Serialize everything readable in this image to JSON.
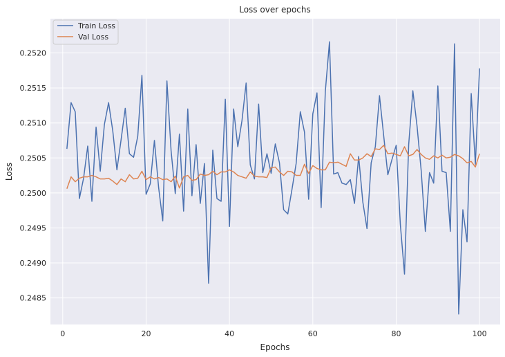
{
  "chart_data": {
    "type": "line",
    "title": "Loss over epochs",
    "xlabel": "Epochs",
    "ylabel": "Loss",
    "xlim": [
      -2.95,
      104.95
    ],
    "ylim": [
      0.24812,
      0.25249
    ],
    "grid": true,
    "legend_position": "top-left",
    "x_ticks": [
      0,
      20,
      40,
      60,
      80,
      100
    ],
    "y_ticks": [
      0.2485,
      0.249,
      0.2495,
      0.25,
      0.2505,
      0.251,
      0.2515,
      0.252
    ],
    "x_tick_labels": [
      "0",
      "20",
      "40",
      "60",
      "80",
      "100"
    ],
    "y_tick_labels": [
      "0.2485",
      "0.2490",
      "0.2495",
      "0.2500",
      "0.2505",
      "0.2510",
      "0.2515",
      "0.2520"
    ],
    "x": [
      1,
      2,
      3,
      4,
      5,
      6,
      7,
      8,
      9,
      10,
      11,
      12,
      13,
      14,
      15,
      16,
      17,
      18,
      19,
      20,
      21,
      22,
      23,
      24,
      25,
      26,
      27,
      28,
      29,
      30,
      31,
      32,
      33,
      34,
      35,
      36,
      37,
      38,
      39,
      40,
      41,
      42,
      43,
      44,
      45,
      46,
      47,
      48,
      49,
      50,
      51,
      52,
      53,
      54,
      55,
      56,
      57,
      58,
      59,
      60,
      61,
      62,
      63,
      64,
      65,
      66,
      67,
      68,
      69,
      70,
      71,
      72,
      73,
      74,
      75,
      76,
      77,
      78,
      79,
      80,
      81,
      82,
      83,
      84,
      85,
      86,
      87,
      88,
      89,
      90,
      91,
      92,
      93,
      94,
      95,
      96,
      97,
      98,
      99,
      100
    ],
    "series": [
      {
        "name": "Train Loss",
        "color": "#4c72b0",
        "values": [
          0.25063,
          0.25129,
          0.25116,
          0.24992,
          0.25021,
          0.25067,
          0.24988,
          0.25094,
          0.25031,
          0.25098,
          0.25129,
          0.25089,
          0.25033,
          0.25076,
          0.25121,
          0.25056,
          0.25051,
          0.25081,
          0.25168,
          0.24998,
          0.25013,
          0.25075,
          0.25008,
          0.2496,
          0.2516,
          0.2506,
          0.24999,
          0.25084,
          0.24974,
          0.2512,
          0.24996,
          0.25069,
          0.24985,
          0.25042,
          0.24871,
          0.25061,
          0.24992,
          0.24988,
          0.25134,
          0.24952,
          0.2512,
          0.25066,
          0.25103,
          0.25157,
          0.2504,
          0.2502,
          0.25127,
          0.25029,
          0.25056,
          0.25028,
          0.2507,
          0.25043,
          0.24976,
          0.2497,
          0.25005,
          0.25042,
          0.25116,
          0.25087,
          0.24991,
          0.25113,
          0.25143,
          0.24979,
          0.25145,
          0.25216,
          0.25027,
          0.25029,
          0.25014,
          0.25012,
          0.25019,
          0.24985,
          0.25052,
          0.24987,
          0.24949,
          0.25043,
          0.25066,
          0.25139,
          0.25082,
          0.25026,
          0.25048,
          0.25068,
          0.24955,
          0.24884,
          0.25069,
          0.25146,
          0.25096,
          0.25032,
          0.24945,
          0.25029,
          0.25014,
          0.25153,
          0.25031,
          0.25029,
          0.24945,
          0.25213,
          0.24827,
          0.24976,
          0.2493,
          0.25142,
          0.25041,
          0.25178
        ]
      },
      {
        "name": "Val Loss",
        "color": "#dd8452",
        "values": [
          0.25006,
          0.25023,
          0.25016,
          0.25021,
          0.25023,
          0.25023,
          0.25025,
          0.25023,
          0.2502,
          0.2502,
          0.25021,
          0.25017,
          0.25012,
          0.2502,
          0.25016,
          0.25026,
          0.2502,
          0.25021,
          0.25031,
          0.25019,
          0.25023,
          0.2502,
          0.25022,
          0.25019,
          0.2502,
          0.25016,
          0.25024,
          0.25007,
          0.25023,
          0.25025,
          0.25018,
          0.25019,
          0.25027,
          0.25025,
          0.25026,
          0.25031,
          0.25026,
          0.2503,
          0.2503,
          0.25033,
          0.2503,
          0.25025,
          0.25023,
          0.25021,
          0.2503,
          0.25024,
          0.25023,
          0.25023,
          0.25022,
          0.25036,
          0.25037,
          0.2503,
          0.25025,
          0.25031,
          0.2503,
          0.25025,
          0.25025,
          0.25041,
          0.25028,
          0.25039,
          0.25035,
          0.25033,
          0.25033,
          0.25044,
          0.25043,
          0.25044,
          0.25041,
          0.25038,
          0.25056,
          0.25047,
          0.25047,
          0.2505,
          0.25056,
          0.25052,
          0.25063,
          0.25062,
          0.25068,
          0.25056,
          0.25057,
          0.25055,
          0.25053,
          0.25066,
          0.25053,
          0.25055,
          0.25062,
          0.25055,
          0.2505,
          0.25048,
          0.25053,
          0.2505,
          0.25054,
          0.2505,
          0.25051,
          0.25055,
          0.25053,
          0.25049,
          0.25043,
          0.25045,
          0.25037,
          0.25056
        ]
      }
    ]
  }
}
